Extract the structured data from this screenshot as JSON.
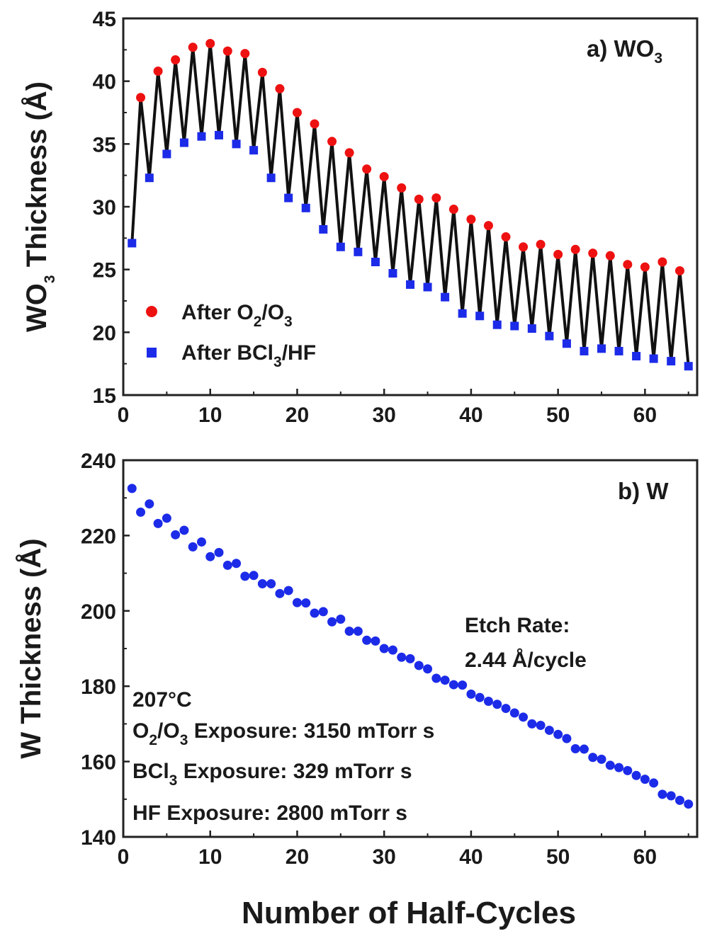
{
  "figure": {
    "xlabel": "Number of Half-Cycles"
  },
  "panel_a": {
    "title_main": "a) WO",
    "title_sub": "3",
    "ylabel_main": "WO",
    "ylabel_sub": "3",
    "ylabel_rest": " Thickness (Å)",
    "legend": {
      "oxidized": {
        "t1": "After O",
        "s1": "2",
        "t2": "/O",
        "s2": "3"
      },
      "etched": {
        "t1": "After BCl",
        "s1": "3",
        "t2": "/HF"
      }
    }
  },
  "panel_b": {
    "title": "b) W",
    "ylabel": "W Thickness (Å)",
    "etch_rate_label": "Etch Rate:",
    "etch_rate_value": "2.44 Å/cycle",
    "temperature": "207°C",
    "exposure_o2": {
      "t1": "O",
      "s1": "2",
      "t2": "/O",
      "s2": "3",
      "t3": " Exposure: 3150 mTorr s"
    },
    "exposure_bcl3": {
      "t1": "BCl",
      "s1": "3",
      "t2": " Exposure: 329 mTorr s"
    },
    "exposure_hf": "HF Exposure: 2800 mTorr s"
  },
  "colors": {
    "line": "#111111",
    "oxidized_marker": "#ee1111",
    "etched_marker": "#1c2be8",
    "w_marker": "#1c2be8",
    "axis": "#222222"
  },
  "chart_data": [
    {
      "type": "line",
      "title": "a) WO3",
      "xlabel": "Number of Half-Cycles",
      "ylabel": "WO3 Thickness (Å)",
      "xlim": [
        0,
        66
      ],
      "ylim": [
        15,
        45
      ],
      "xticks": [
        0,
        10,
        20,
        30,
        40,
        50,
        60
      ],
      "yticks": [
        15,
        20,
        25,
        30,
        35,
        40,
        45
      ],
      "legend_position": "bottom-left",
      "series": [
        {
          "name": "After O2/O3",
          "marker": "circle",
          "x": [
            2,
            4,
            6,
            8,
            10,
            12,
            14,
            16,
            18,
            20,
            22,
            24,
            26,
            28,
            30,
            32,
            34,
            36,
            38,
            40,
            42,
            44,
            46,
            48,
            50,
            52,
            54,
            56,
            58,
            60,
            62,
            64
          ],
          "y": [
            38.7,
            40.8,
            41.7,
            42.7,
            43.0,
            42.4,
            42.2,
            40.7,
            39.4,
            37.5,
            36.6,
            35.2,
            34.3,
            33.0,
            32.4,
            31.5,
            30.6,
            30.7,
            29.8,
            29.0,
            28.5,
            27.6,
            26.8,
            27.0,
            26.2,
            26.6,
            26.3,
            26.1,
            25.4,
            25.2,
            25.6,
            24.9
          ]
        },
        {
          "name": "After BCl3/HF",
          "marker": "square",
          "x": [
            1,
            3,
            5,
            7,
            9,
            11,
            13,
            15,
            17,
            19,
            21,
            23,
            25,
            27,
            29,
            31,
            33,
            35,
            37,
            39,
            41,
            43,
            45,
            47,
            49,
            51,
            53,
            55,
            57,
            59,
            61,
            63,
            65
          ],
          "y": [
            27.1,
            32.3,
            34.2,
            35.1,
            35.6,
            35.7,
            35.0,
            34.5,
            32.3,
            30.7,
            29.9,
            28.2,
            26.8,
            26.4,
            25.6,
            24.7,
            23.8,
            23.6,
            22.8,
            21.5,
            21.3,
            20.6,
            20.5,
            20.3,
            19.7,
            19.1,
            18.5,
            18.7,
            18.5,
            18.1,
            17.9,
            17.7,
            17.3
          ]
        }
      ]
    },
    {
      "type": "scatter",
      "title": "b) W",
      "xlabel": "Number of Half-Cycles",
      "ylabel": "W Thickness (Å)",
      "xlim": [
        0,
        66
      ],
      "ylim": [
        140,
        240
      ],
      "xticks": [
        0,
        10,
        20,
        30,
        40,
        50,
        60
      ],
      "yticks": [
        140,
        160,
        180,
        200,
        220,
        240
      ],
      "annotations": [
        "Etch Rate:",
        "2.44 Å/cycle",
        "207°C",
        "O2/O3 Exposure: 3150 mTorr s",
        "BCl3 Exposure: 329 mTorr s",
        "HF Exposure: 2800 mTorr s"
      ],
      "series": [
        {
          "marker": "circle",
          "x": [
            1,
            2,
            3,
            4,
            5,
            6,
            7,
            8,
            9,
            10,
            11,
            12,
            13,
            14,
            15,
            16,
            17,
            18,
            19,
            20,
            21,
            22,
            23,
            24,
            25,
            26,
            27,
            28,
            29,
            30,
            31,
            32,
            33,
            34,
            35,
            36,
            37,
            38,
            39,
            40,
            41,
            42,
            43,
            44,
            45,
            46,
            47,
            48,
            49,
            50,
            51,
            52,
            53,
            54,
            55,
            56,
            57,
            58,
            59,
            60,
            61,
            62,
            63,
            64,
            65
          ],
          "y": [
            232.5,
            226.2,
            228.4,
            223.2,
            224.6,
            220.2,
            221.4,
            217.0,
            218.3,
            214.4,
            215.5,
            212.1,
            212.6,
            209.2,
            209.4,
            207.2,
            207.2,
            204.6,
            205.4,
            202.2,
            202.1,
            199.4,
            199.8,
            197.1,
            197.8,
            194.6,
            194.6,
            192.2,
            192.0,
            190.0,
            189.6,
            187.7,
            187.3,
            185.5,
            184.6,
            182.1,
            181.6,
            180.4,
            180.3,
            177.9,
            177.0,
            176.0,
            175.2,
            174.1,
            172.9,
            171.8,
            170.0,
            169.6,
            168.3,
            167.2,
            166.1,
            163.4,
            163.3,
            161.1,
            160.6,
            159.0,
            158.4,
            157.6,
            156.3,
            155.3,
            154.3,
            151.3,
            150.9,
            149.7,
            148.7
          ]
        }
      ]
    }
  ]
}
